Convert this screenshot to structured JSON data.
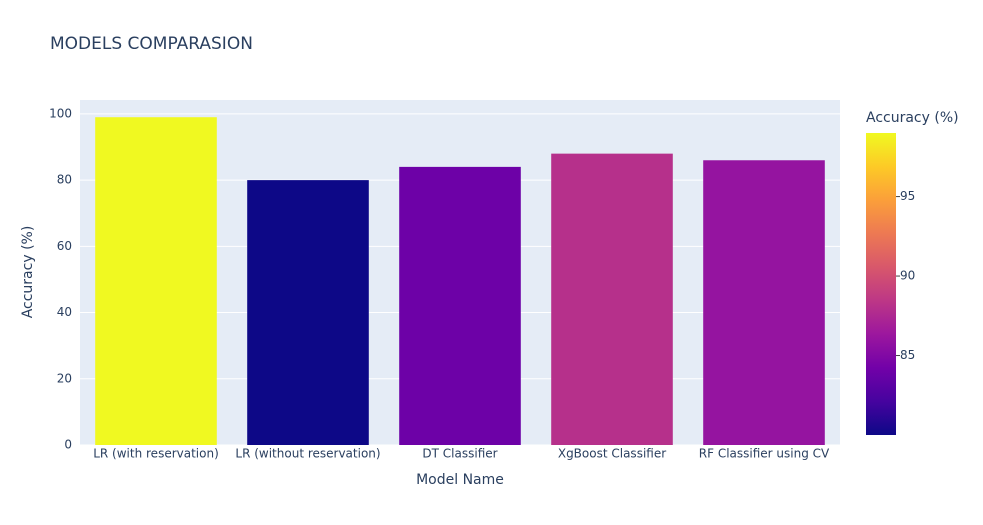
{
  "chart_data": {
    "type": "bar",
    "title": "MODELS COMPARASION",
    "x_label": "Model Name",
    "y_label": "Accuracy (%)",
    "categories": [
      "LR (with reservation)",
      "LR (without reservation)",
      "DT Classifier",
      "XgBoost Classifier",
      "RF Classifier using CV"
    ],
    "values": [
      99,
      80,
      84,
      88,
      86
    ],
    "ylim": [
      0,
      104.2
    ],
    "yticks": [
      0,
      20,
      40,
      60,
      80,
      100
    ],
    "grid": true,
    "colorbar_title": "Accuracy (%)",
    "clim": [
      80,
      99
    ],
    "colorbar_ticks": [
      85,
      90,
      95
    ],
    "colorscale": [
      "#0d0887",
      "#46039f",
      "#7201a8",
      "#9c179e",
      "#bd3786",
      "#d8576b",
      "#ed7953",
      "#fb9f3a",
      "#fdca26",
      "#f0f921"
    ]
  }
}
